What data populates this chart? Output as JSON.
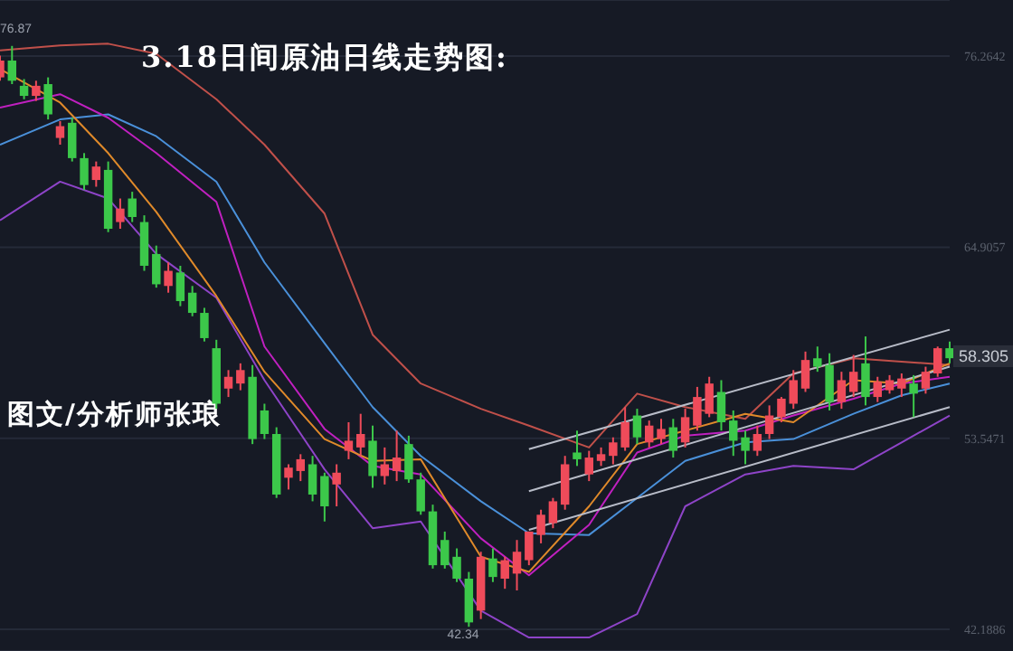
{
  "chart_data": {
    "type": "candlestick",
    "title": "3.18日间原油日线走势图:",
    "categories": [
      null,
      null,
      null,
      null,
      null,
      null,
      null,
      null,
      null,
      null,
      null,
      null,
      null,
      null,
      null,
      null,
      null,
      null,
      null,
      null,
      null,
      null,
      null,
      null,
      null,
      null,
      null,
      null,
      null,
      null,
      null,
      null,
      null,
      null,
      null,
      null,
      null,
      null,
      null,
      null,
      null,
      null,
      null,
      null,
      null,
      null,
      null,
      null,
      null,
      null,
      null,
      null,
      null,
      null,
      null,
      null,
      null,
      null,
      null,
      null,
      null,
      null,
      null,
      null,
      null,
      null,
      null,
      null,
      null,
      null,
      null,
      null,
      null,
      null,
      null,
      null,
      null,
      null,
      null,
      null
    ],
    "series": [
      {
        "type": "line",
        "color": "#c0504a",
        "values": [
          76.6,
          null,
          null,
          null,
          null,
          76.9,
          null,
          null,
          null,
          77.0,
          null,
          null,
          null,
          76.4,
          null,
          null,
          null,
          null,
          73.7,
          null,
          null,
          null,
          71.0,
          null,
          null,
          null,
          null,
          66.9,
          null,
          null,
          null,
          59.7,
          null,
          null,
          null,
          56.8,
          null,
          null,
          null,
          null,
          55.3,
          null,
          null,
          null,
          54.3,
          null,
          null,
          null,
          null,
          53.0,
          null,
          null,
          null,
          56.2,
          null,
          null,
          null,
          55.4,
          null,
          null,
          null,
          null,
          54.7,
          null,
          null,
          null,
          57.4,
          null,
          null,
          null,
          null,
          58.3,
          null,
          null,
          null,
          58.1,
          null,
          null,
          null,
          57.9
        ]
      },
      {
        "type": "line",
        "color": "#8e44c8",
        "values": [
          66.5,
          null,
          null,
          null,
          null,
          68.8,
          null,
          null,
          null,
          67.8,
          null,
          null,
          null,
          64.5,
          null,
          null,
          null,
          null,
          61.9,
          null,
          null,
          null,
          57.0,
          null,
          null,
          null,
          null,
          51.7,
          null,
          null,
          null,
          48.2,
          null,
          null,
          null,
          48.6,
          null,
          null,
          null,
          null,
          43.3,
          null,
          null,
          null,
          41.7,
          null,
          null,
          null,
          null,
          41.7,
          null,
          null,
          null,
          43.1,
          null,
          null,
          null,
          49.5,
          null,
          null,
          null,
          null,
          51.4,
          null,
          null,
          null,
          51.9,
          null,
          null,
          null,
          null,
          51.7,
          null,
          null,
          null,
          53.3,
          null,
          null,
          null,
          54.9
        ]
      },
      {
        "type": "line",
        "color": "#4a90d9",
        "values": [
          71.0,
          null,
          null,
          null,
          null,
          72.5,
          null,
          null,
          null,
          72.8,
          null,
          null,
          null,
          71.5,
          null,
          null,
          null,
          null,
          68.8,
          null,
          null,
          null,
          64.0,
          null,
          null,
          null,
          null,
          59.2,
          null,
          null,
          null,
          55.4,
          null,
          null,
          null,
          52.5,
          null,
          null,
          null,
          null,
          49.8,
          null,
          null,
          null,
          47.9,
          null,
          null,
          null,
          null,
          47.8,
          null,
          null,
          null,
          50.0,
          null,
          null,
          null,
          52.2,
          null,
          null,
          null,
          null,
          53.3,
          null,
          null,
          null,
          53.5,
          null,
          null,
          null,
          null,
          55.0,
          null,
          null,
          null,
          56.1,
          null,
          null,
          null,
          56.8
        ]
      },
      {
        "type": "line",
        "color": "#c020c0",
        "values": [
          73.2,
          null,
          null,
          null,
          null,
          74.0,
          null,
          null,
          null,
          72.6,
          null,
          null,
          null,
          70.5,
          null,
          null,
          null,
          null,
          67.6,
          null,
          null,
          null,
          59.0,
          null,
          null,
          null,
          null,
          54.1,
          null,
          null,
          null,
          51.9,
          null,
          null,
          null,
          51.4,
          null,
          null,
          null,
          null,
          47.6,
          null,
          null,
          null,
          45.4,
          null,
          null,
          null,
          null,
          48.4,
          null,
          null,
          null,
          52.7,
          null,
          null,
          null,
          53.7,
          null,
          null,
          null,
          null,
          54.0,
          null,
          null,
          null,
          54.9,
          null,
          null,
          null,
          null,
          55.9,
          null,
          null,
          null,
          56.8,
          null,
          null,
          null,
          57.2
        ]
      },
      {
        "type": "line",
        "color": "#e08a2a",
        "values": [
          75.5,
          null,
          null,
          null,
          null,
          73.5,
          null,
          null,
          null,
          70.5,
          null,
          null,
          null,
          67.0,
          null,
          null,
          null,
          null,
          62.0,
          null,
          null,
          null,
          57.5,
          null,
          null,
          null,
          null,
          53.5,
          null,
          null,
          null,
          52.2,
          null,
          null,
          null,
          52.3,
          null,
          null,
          null,
          null,
          46.5,
          null,
          null,
          null,
          45.6,
          null,
          null,
          null,
          null,
          49.5,
          null,
          null,
          null,
          53.2,
          null,
          null,
          null,
          54.0,
          null,
          null,
          null,
          null,
          55.0,
          null,
          null,
          null,
          54.5,
          null,
          null,
          null,
          null,
          57.0,
          null,
          null,
          null,
          56.8,
          null,
          null,
          null,
          58.0
        ]
      },
      {
        "type": "line",
        "color": "#b8bcc8",
        "values": [
          null,
          null,
          null,
          null,
          null,
          null,
          null,
          null,
          null,
          null,
          null,
          null,
          null,
          null,
          null,
          null,
          null,
          null,
          null,
          null,
          null,
          null,
          null,
          null,
          null,
          null,
          null,
          null,
          null,
          null,
          null,
          null,
          null,
          null,
          null,
          null,
          null,
          null,
          null,
          null,
          null,
          null,
          null,
          null,
          52.9,
          null,
          null,
          null,
          null,
          null,
          null,
          null,
          null,
          null,
          null,
          null,
          null,
          null,
          null,
          null,
          null,
          null,
          null,
          null,
          null,
          null,
          null,
          null,
          null,
          null,
          null,
          null,
          null,
          null,
          null,
          null,
          null,
          null,
          null,
          60.0
        ]
      },
      {
        "type": "line",
        "color": "#b8bcc8",
        "values": [
          null,
          null,
          null,
          null,
          null,
          null,
          null,
          null,
          null,
          null,
          null,
          null,
          null,
          null,
          null,
          null,
          null,
          null,
          null,
          null,
          null,
          null,
          null,
          null,
          null,
          null,
          null,
          null,
          null,
          null,
          null,
          null,
          null,
          null,
          null,
          null,
          null,
          null,
          null,
          null,
          null,
          null,
          null,
          null,
          50.4,
          null,
          null,
          null,
          null,
          null,
          null,
          null,
          null,
          null,
          null,
          null,
          null,
          null,
          null,
          null,
          null,
          null,
          null,
          null,
          null,
          null,
          null,
          null,
          null,
          null,
          null,
          null,
          null,
          null,
          null,
          null,
          null,
          null,
          null,
          57.8
        ]
      },
      {
        "type": "line",
        "color": "#b8bcc8",
        "values": [
          null,
          null,
          null,
          null,
          null,
          null,
          null,
          null,
          null,
          null,
          null,
          null,
          null,
          null,
          null,
          null,
          null,
          null,
          null,
          null,
          null,
          null,
          null,
          null,
          null,
          null,
          null,
          null,
          null,
          null,
          null,
          null,
          null,
          null,
          null,
          null,
          null,
          null,
          null,
          null,
          null,
          null,
          null,
          null,
          48.1,
          null,
          null,
          null,
          null,
          null,
          null,
          null,
          null,
          null,
          null,
          null,
          null,
          null,
          null,
          null,
          null,
          null,
          null,
          null,
          null,
          null,
          null,
          null,
          null,
          null,
          null,
          null,
          null,
          null,
          null,
          null,
          null,
          null,
          null,
          55.4
        ]
      },
      {
        "type": "candlestick",
        "ohlc": [
          [
            75.0,
            76.3,
            74.8,
            76.0
          ],
          [
            76.0,
            76.87,
            74.6,
            74.8
          ],
          [
            74.5,
            74.9,
            73.7,
            73.9
          ],
          [
            73.9,
            74.8,
            73.6,
            74.5
          ],
          [
            74.6,
            75.0,
            72.5,
            72.8
          ],
          [
            71.4,
            72.4,
            71.0,
            72.1
          ],
          [
            72.3,
            72.6,
            70.0,
            70.2
          ],
          [
            70.2,
            70.5,
            68.3,
            68.6
          ],
          [
            68.9,
            70.0,
            68.5,
            69.7
          ],
          [
            69.5,
            70.0,
            65.8,
            66.0
          ],
          [
            66.4,
            67.8,
            66.0,
            67.2
          ],
          [
            67.8,
            68.2,
            66.4,
            66.7
          ],
          [
            66.4,
            66.8,
            63.5,
            63.8
          ],
          [
            64.5,
            65.0,
            62.5,
            62.7
          ],
          [
            62.6,
            64.0,
            62.2,
            63.5
          ],
          [
            63.4,
            63.8,
            61.4,
            61.7
          ],
          [
            62.2,
            62.6,
            60.8,
            61.0
          ],
          [
            61.0,
            61.3,
            59.3,
            59.5
          ],
          [
            58.9,
            59.4,
            55.3,
            55.6
          ],
          [
            56.5,
            57.6,
            56.0,
            57.2
          ],
          [
            56.8,
            58.0,
            56.4,
            57.6
          ],
          [
            57.2,
            57.9,
            53.2,
            53.5
          ],
          [
            55.2,
            55.6,
            53.5,
            53.8
          ],
          [
            53.8,
            54.2,
            50.0,
            50.2
          ],
          [
            51.2,
            52.0,
            50.5,
            51.8
          ],
          [
            51.6,
            52.6,
            51.0,
            52.3
          ],
          [
            52.0,
            52.5,
            49.8,
            50.2
          ],
          [
            51.3,
            51.5,
            48.6,
            49.5
          ],
          [
            50.8,
            52.0,
            49.5,
            51.5
          ],
          [
            52.8,
            54.5,
            52.3,
            53.4
          ],
          [
            53.0,
            55.0,
            52.5,
            53.8
          ],
          [
            53.4,
            54.3,
            50.6,
            51.3
          ],
          [
            51.3,
            53.0,
            50.8,
            52.0
          ],
          [
            51.6,
            54.0,
            51.0,
            52.4
          ],
          [
            53.2,
            53.7,
            50.9,
            51.1
          ],
          [
            51.1,
            51.5,
            49.0,
            49.2
          ],
          [
            49.2,
            49.6,
            45.8,
            46.0
          ],
          [
            47.5,
            48.0,
            45.8,
            46.0
          ],
          [
            46.5,
            47.0,
            45.0,
            45.2
          ],
          [
            45.2,
            45.6,
            42.34,
            42.6
          ],
          [
            43.3,
            46.8,
            42.8,
            46.5
          ],
          [
            46.4,
            47.0,
            45.0,
            45.3
          ],
          [
            45.2,
            46.5,
            44.6,
            46.3
          ],
          [
            45.5,
            47.5,
            44.5,
            46.8
          ],
          [
            46.3,
            48.0,
            46.0,
            48.0
          ],
          [
            47.8,
            49.3,
            47.3,
            49.0
          ],
          [
            48.5,
            50.0,
            48.2,
            49.8
          ],
          [
            49.6,
            52.5,
            49.3,
            52.0
          ],
          [
            52.7,
            54.0,
            51.9,
            52.3
          ],
          [
            51.4,
            52.8,
            51.0,
            52.4
          ],
          [
            52.2,
            53.0,
            51.9,
            52.6
          ],
          [
            52.5,
            53.6,
            52.0,
            53.3
          ],
          [
            53.0,
            55.4,
            52.8,
            54.5
          ],
          [
            54.9,
            55.3,
            53.2,
            53.6
          ],
          [
            53.3,
            54.6,
            53.0,
            54.3
          ],
          [
            53.5,
            54.7,
            53.2,
            54.1
          ],
          [
            54.2,
            54.7,
            52.4,
            52.8
          ],
          [
            53.3,
            55.3,
            53.0,
            54.8
          ],
          [
            54.3,
            56.6,
            54.0,
            56.0
          ],
          [
            55.0,
            57.2,
            54.8,
            56.8
          ],
          [
            56.3,
            57.0,
            54.0,
            54.5
          ],
          [
            54.6,
            55.2,
            52.5,
            53.4
          ],
          [
            53.6,
            54.0,
            52.0,
            52.8
          ],
          [
            52.8,
            54.3,
            52.5,
            53.8
          ],
          [
            53.8,
            55.5,
            53.5,
            54.9
          ],
          [
            54.8,
            56.0,
            54.5,
            55.9
          ],
          [
            55.6,
            57.6,
            55.3,
            57.0
          ],
          [
            56.5,
            58.7,
            56.3,
            58.2
          ],
          [
            58.3,
            59.0,
            57.5,
            57.8
          ],
          [
            57.9,
            58.6,
            55.2,
            55.7
          ],
          [
            55.7,
            57.5,
            55.3,
            57.0
          ],
          [
            56.3,
            58.5,
            56.0,
            57.5
          ],
          [
            58.0,
            59.6,
            55.5,
            56.0
          ],
          [
            56.0,
            57.2,
            55.7,
            56.9
          ],
          [
            56.4,
            57.3,
            56.2,
            57.0
          ],
          [
            56.5,
            57.4,
            56.0,
            57.1
          ],
          [
            56.8,
            57.3,
            54.8,
            56.2
          ],
          [
            56.5,
            57.8,
            56.2,
            57.5
          ],
          [
            57.4,
            59.0,
            57.2,
            58.9
          ],
          [
            58.9,
            59.3,
            58.0,
            58.305
          ]
        ]
      }
    ],
    "ylim": [
      40.9,
      79.6
    ],
    "yticks": [
      42.1886,
      53.5471,
      64.9057,
      76.2642
    ],
    "grid": "y",
    "tick_labels": "y",
    "annotations": [
      "图文/分析师张琅",
      {
        "text": "76.87",
        "y": 76.87
      },
      {
        "text": "42.34",
        "y": 42.34
      },
      {
        "text": "58.305",
        "y": 58.305
      }
    ]
  }
}
